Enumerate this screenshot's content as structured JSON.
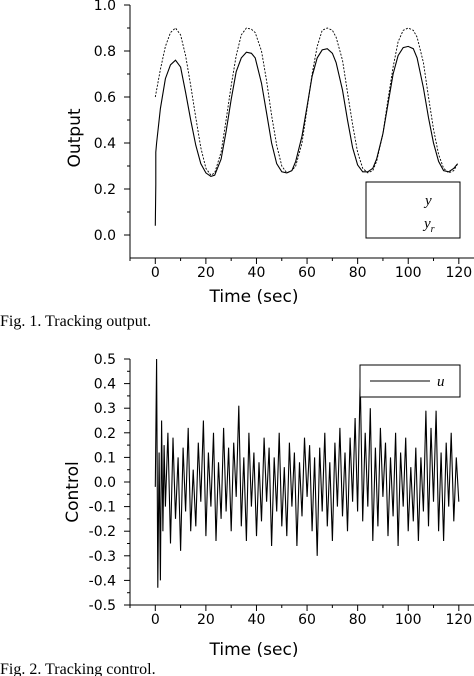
{
  "fig1": {
    "caption": "Fig. 1.   Tracking output.",
    "legend": {
      "y": "y",
      "yr_main": "y",
      "yr_sub": "r"
    }
  },
  "fig2": {
    "caption": "Fig. 2.   Tracking control.",
    "legend": {
      "u": "u"
    }
  },
  "chart_data": [
    {
      "type": "line",
      "xlabel": "Time (sec)",
      "ylabel": "Output",
      "xlim": [
        -10,
        126
      ],
      "ylim": [
        -0.1,
        1.0
      ],
      "xticks": [
        0,
        20,
        40,
        60,
        80,
        100,
        120
      ],
      "xtick_labels": [
        "0",
        "20",
        "40",
        "60",
        "80",
        "100",
        "120"
      ],
      "yticks": [
        0.0,
        0.2,
        0.4,
        0.6,
        0.8,
        1.0
      ],
      "ytick_labels": [
        "0.0",
        "0.2",
        "0.4",
        "0.6",
        "0.8",
        "1.0"
      ],
      "grid": false,
      "legend_position": "bottom-right",
      "series": [
        {
          "name": "y",
          "style": "solid",
          "x": [
            0,
            0.2,
            0.2,
            0.5,
            2,
            4,
            6,
            8,
            10,
            12,
            14,
            16,
            18,
            20,
            22,
            23.5,
            26,
            28,
            30,
            32,
            34,
            36,
            38,
            39.5,
            42,
            44,
            46,
            48,
            50,
            52,
            54,
            55.5,
            58,
            60,
            62,
            64,
            66,
            68,
            70,
            71.5,
            74,
            76,
            78,
            80,
            82,
            84,
            86,
            87.5,
            90,
            92,
            94,
            96,
            98,
            100,
            102,
            103.5,
            106,
            108,
            110,
            112,
            114,
            116,
            118,
            119.5
          ],
          "y": [
            0.04,
            0.22,
            0.36,
            0.4,
            0.55,
            0.68,
            0.74,
            0.76,
            0.73,
            0.62,
            0.5,
            0.39,
            0.31,
            0.27,
            0.255,
            0.26,
            0.33,
            0.45,
            0.59,
            0.71,
            0.77,
            0.795,
            0.79,
            0.77,
            0.66,
            0.53,
            0.4,
            0.31,
            0.275,
            0.27,
            0.28,
            0.32,
            0.43,
            0.56,
            0.69,
            0.77,
            0.805,
            0.81,
            0.79,
            0.75,
            0.63,
            0.5,
            0.38,
            0.305,
            0.275,
            0.275,
            0.29,
            0.33,
            0.44,
            0.57,
            0.7,
            0.78,
            0.815,
            0.82,
            0.81,
            0.77,
            0.64,
            0.51,
            0.4,
            0.32,
            0.28,
            0.275,
            0.29,
            0.31
          ]
        },
        {
          "name": "yr",
          "style": "dashed",
          "x": [
            0,
            2,
            4,
            6,
            8,
            10,
            12,
            14,
            16,
            18,
            20,
            22,
            23.5,
            26,
            28,
            30,
            32,
            34,
            36,
            38,
            39.5,
            42,
            44,
            46,
            48,
            50,
            52,
            54,
            55.5,
            58,
            60,
            62,
            64,
            66,
            68,
            70,
            71.5,
            74,
            76,
            78,
            80,
            82,
            84,
            86,
            87.5,
            90,
            92,
            94,
            96,
            98,
            100,
            102,
            103.5,
            106,
            108,
            110,
            112,
            114,
            116,
            118,
            119.5
          ],
          "y": [
            0.6,
            0.72,
            0.82,
            0.88,
            0.9,
            0.87,
            0.78,
            0.65,
            0.51,
            0.38,
            0.29,
            0.26,
            0.27,
            0.36,
            0.5,
            0.65,
            0.78,
            0.87,
            0.9,
            0.895,
            0.88,
            0.8,
            0.67,
            0.52,
            0.39,
            0.3,
            0.27,
            0.28,
            0.3,
            0.4,
            0.55,
            0.7,
            0.82,
            0.89,
            0.9,
            0.89,
            0.86,
            0.76,
            0.62,
            0.48,
            0.36,
            0.29,
            0.27,
            0.28,
            0.32,
            0.44,
            0.59,
            0.73,
            0.84,
            0.89,
            0.9,
            0.89,
            0.86,
            0.75,
            0.6,
            0.46,
            0.35,
            0.29,
            0.27,
            0.28,
            0.31
          ]
        }
      ]
    },
    {
      "type": "line",
      "xlabel": "Time (sec)",
      "ylabel": "Control",
      "xlim": [
        -10,
        126
      ],
      "ylim": [
        -0.5,
        0.5
      ],
      "xticks": [
        0,
        20,
        40,
        60,
        80,
        100,
        120
      ],
      "xtick_labels": [
        "0",
        "20",
        "40",
        "60",
        "80",
        "100",
        "120"
      ],
      "yticks": [
        -0.5,
        -0.4,
        -0.3,
        -0.2,
        -0.1,
        0.0,
        0.1,
        0.2,
        0.3,
        0.4,
        0.5
      ],
      "ytick_labels": [
        "-0.5",
        "-0.4",
        "-0.3",
        "-0.2",
        "-0.1",
        "0.0",
        "0.1",
        "0.2",
        "0.3",
        "0.4",
        "0.5"
      ],
      "grid": false,
      "legend_position": "top-right",
      "series": [
        {
          "name": "u",
          "style": "solid",
          "x": [
            0,
            0.5,
            1,
            1.5,
            2,
            2.5,
            3,
            3.5,
            4,
            5,
            6,
            7,
            8,
            9,
            10,
            11,
            12,
            13,
            14,
            15,
            16,
            17,
            18,
            19,
            20,
            21,
            22,
            23,
            24,
            25,
            26,
            27,
            28,
            29,
            30,
            31,
            32,
            33,
            34,
            35,
            36,
            37,
            38,
            39,
            40,
            41,
            42,
            43,
            44,
            45,
            46,
            47,
            48,
            49,
            50,
            51,
            52,
            53,
            54,
            55,
            56,
            57,
            58,
            59,
            60,
            61,
            62,
            63,
            64,
            65,
            66,
            67,
            68,
            69,
            70,
            71,
            72,
            73,
            74,
            75,
            76,
            77,
            78,
            79,
            80,
            81,
            82,
            83,
            84,
            85,
            86,
            87,
            88,
            89,
            90,
            91,
            92,
            93,
            94,
            95,
            96,
            97,
            98,
            99,
            100,
            101,
            102,
            103,
            104,
            105,
            106,
            107,
            108,
            109,
            110,
            111,
            112,
            113,
            114,
            115,
            116,
            117,
            118,
            119,
            120
          ],
          "y": [
            -0.02,
            0.5,
            -0.43,
            0.12,
            -0.4,
            0.25,
            -0.2,
            0.15,
            -0.1,
            0.2,
            -0.25,
            0.18,
            -0.15,
            0.1,
            -0.28,
            0.14,
            -0.12,
            0.22,
            -0.2,
            0.05,
            -0.18,
            0.16,
            -0.08,
            0.25,
            -0.22,
            0.12,
            -0.1,
            0.2,
            -0.24,
            0.08,
            -0.15,
            0.22,
            -0.12,
            0.14,
            -0.2,
            0.16,
            -0.06,
            0.31,
            -0.18,
            0.1,
            -0.24,
            0.2,
            -0.1,
            0.12,
            -0.22,
            0.08,
            -0.16,
            0.18,
            -0.08,
            0.14,
            -0.26,
            0.1,
            -0.12,
            0.2,
            -0.18,
            0.06,
            -0.22,
            0.16,
            -0.1,
            0.12,
            -0.26,
            0.08,
            -0.14,
            0.18,
            -0.06,
            0.15,
            -0.2,
            0.1,
            -0.3,
            0.14,
            -0.12,
            0.2,
            -0.18,
            0.08,
            -0.24,
            0.16,
            -0.1,
            0.22,
            -0.14,
            0.12,
            -0.2,
            0.18,
            -0.08,
            0.26,
            -0.12,
            0.42,
            -0.16,
            0.2,
            -0.1,
            0.3,
            -0.24,
            0.14,
            -0.18,
            0.22,
            -0.06,
            0.16,
            -0.22,
            0.1,
            -0.14,
            0.2,
            -0.26,
            0.12,
            -0.1,
            0.18,
            -0.2,
            0.06,
            -0.16,
            0.14,
            -0.24,
            0.1,
            -0.12,
            0.29,
            -0.18,
            0.22,
            -0.08,
            0.29,
            -0.2,
            0.12,
            -0.24,
            0.16,
            -0.1,
            0.2,
            -0.16,
            0.1,
            -0.08
          ]
        }
      ]
    }
  ]
}
